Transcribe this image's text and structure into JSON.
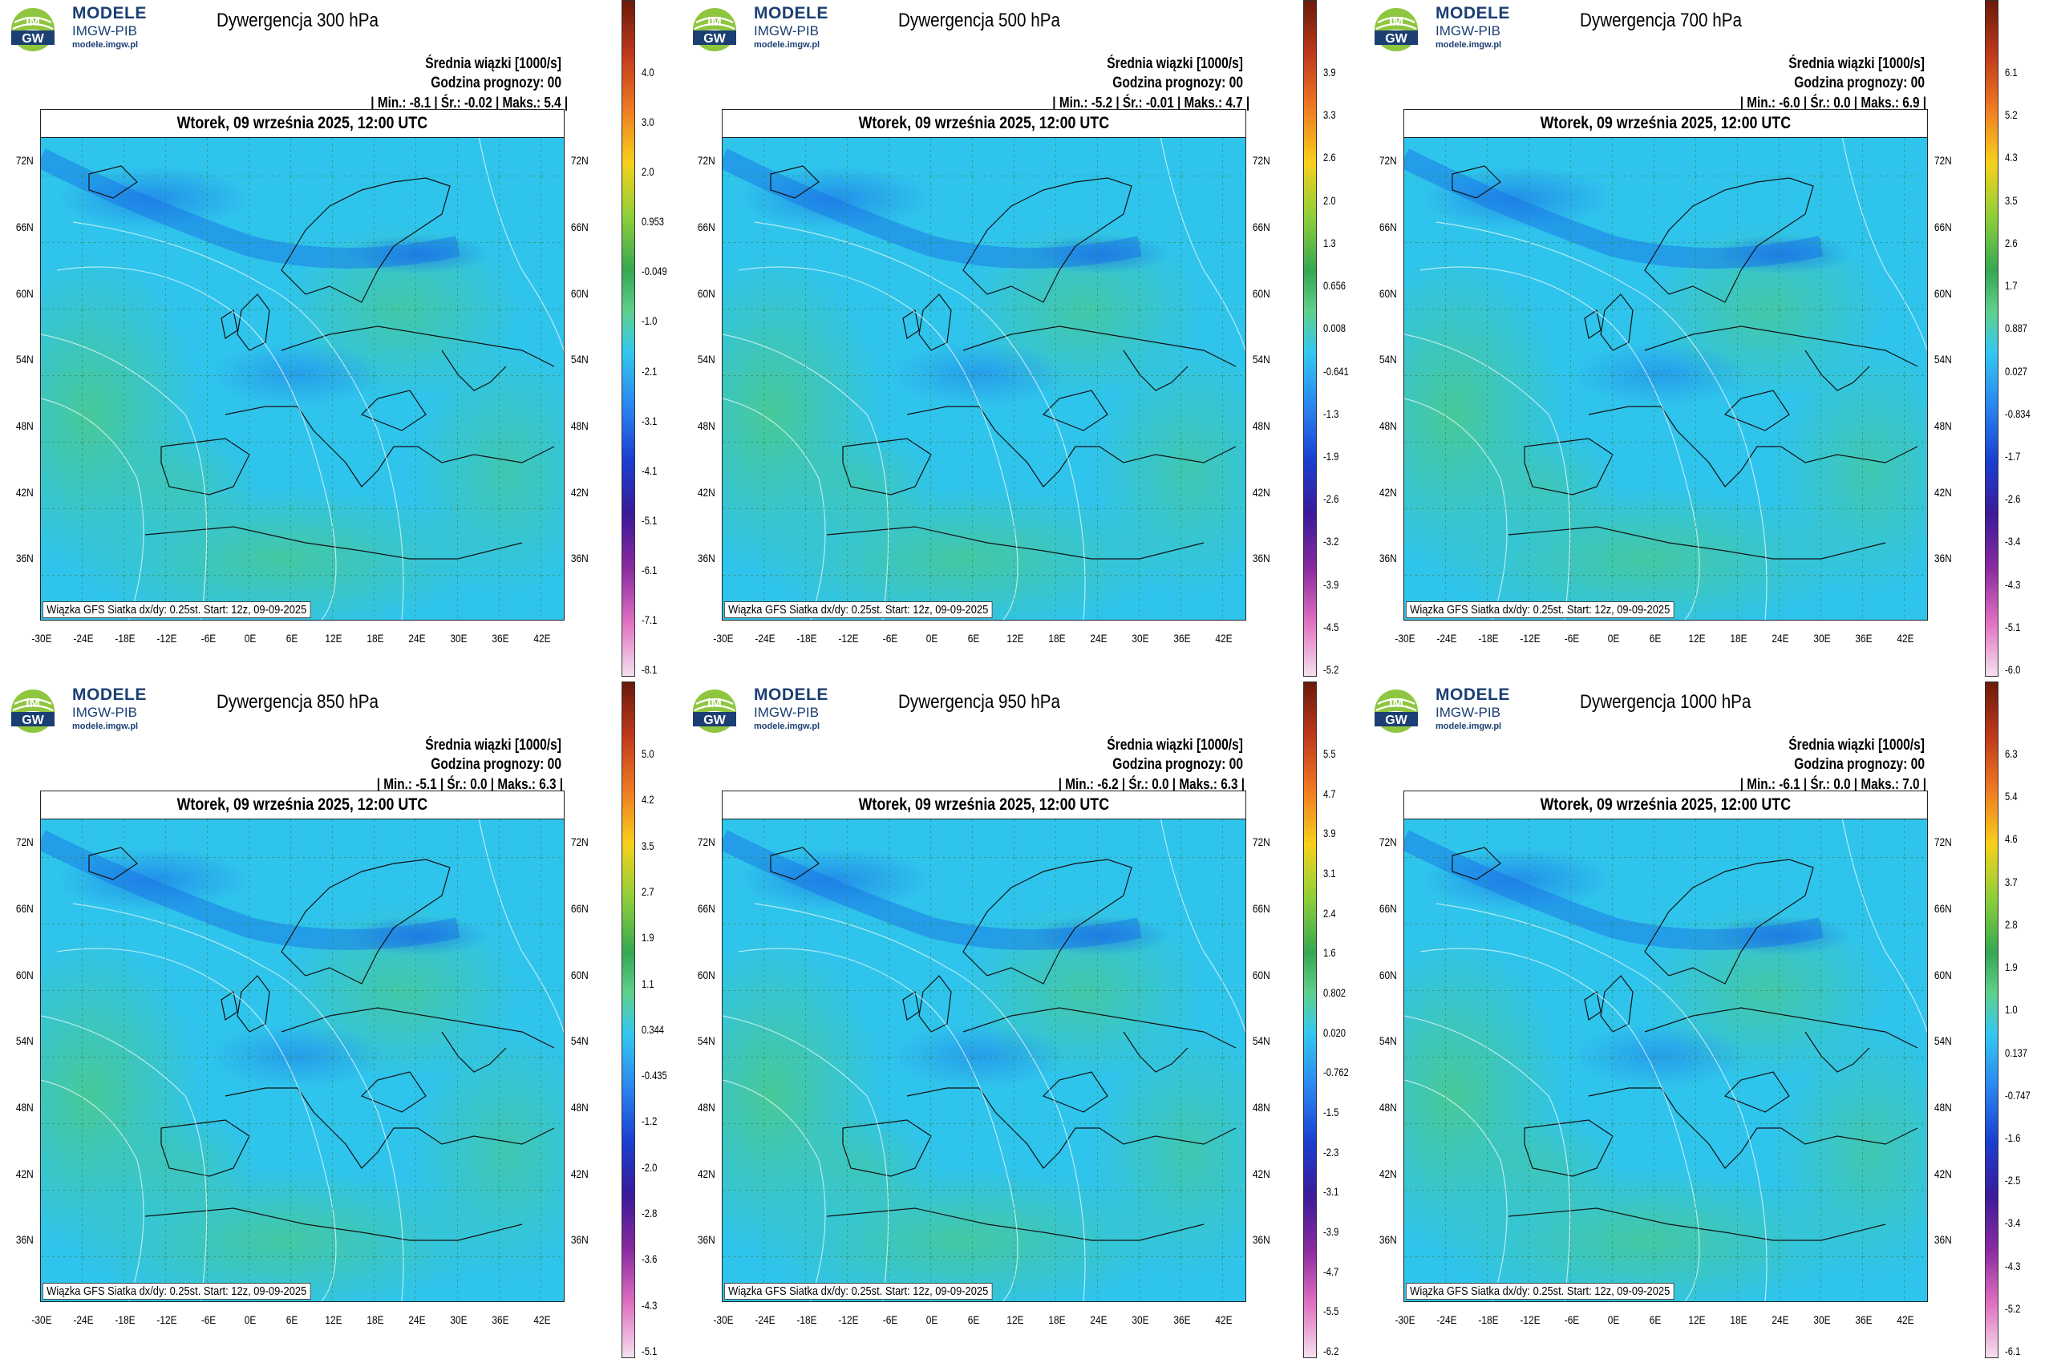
{
  "brand": {
    "line1": "MODELE",
    "line2": "IMGW-PIB",
    "line3": "modele.imgw.pl",
    "logo_text_top": "IM",
    "logo_text_bottom": "GW"
  },
  "common": {
    "ensemble_label": "Średnia wiązki [1000/s]",
    "forecast_hour_label": "Godzina prognozy: 00",
    "date": "Wtorek, 09 września 2025, 12:00 UTC",
    "footer": "Wiązka GFS Siatka dx/dy: 0.25st. Start: 12z, 09-09-2025",
    "lat_labels": [
      "72N",
      "66N",
      "60N",
      "54N",
      "48N",
      "42N",
      "36N"
    ],
    "lon_labels": [
      "-30E",
      "-24E",
      "-18E",
      "-12E",
      "-6E",
      "0E",
      "6E",
      "12E",
      "18E",
      "24E",
      "30E",
      "36E",
      "42E"
    ]
  },
  "panels": [
    {
      "title": "Dywergencja 300 hPa",
      "min": "-8.1",
      "avg": "-0.02",
      "max": "5.4",
      "scale": [
        "4.0",
        "3.0",
        "2.0",
        "0.953",
        "-0.049",
        "-1.0",
        "-2.1",
        "-3.1",
        "-4.1",
        "-5.1",
        "-6.1",
        "-7.1",
        "-8.1"
      ]
    },
    {
      "title": "Dywergencja 500 hPa",
      "min": "-5.2",
      "avg": "-0.01",
      "max": "4.7",
      "scale": [
        "3.9",
        "3.3",
        "2.6",
        "2.0",
        "1.3",
        "0.656",
        "0.008",
        "-0.641",
        "-1.3",
        "-1.9",
        "-2.6",
        "-3.2",
        "-3.9",
        "-4.5",
        "-5.2"
      ]
    },
    {
      "title": "Dywergencja 700 hPa",
      "min": "-6.0",
      "avg": "0.0",
      "max": "6.9",
      "scale": [
        "6.1",
        "5.2",
        "4.3",
        "3.5",
        "2.6",
        "1.7",
        "0.887",
        "0.027",
        "-0.834",
        "-1.7",
        "-2.6",
        "-3.4",
        "-4.3",
        "-5.1",
        "-6.0"
      ]
    },
    {
      "title": "Dywergencja 850 hPa",
      "min": "-5.1",
      "avg": "0.0",
      "max": "6.3",
      "scale": [
        "5.0",
        "4.2",
        "3.5",
        "2.7",
        "1.9",
        "1.1",
        "0.344",
        "-0.435",
        "-1.2",
        "-2.0",
        "-2.8",
        "-3.6",
        "-4.3",
        "-5.1"
      ]
    },
    {
      "title": "Dywergencja 950 hPa",
      "min": "-6.2",
      "avg": "0.0",
      "max": "6.3",
      "scale": [
        "5.5",
        "4.7",
        "3.9",
        "3.1",
        "2.4",
        "1.6",
        "0.802",
        "0.020",
        "-0.762",
        "-1.5",
        "-2.3",
        "-3.1",
        "-3.9",
        "-4.7",
        "-5.5",
        "-6.2"
      ]
    },
    {
      "title": "Dywergencja 1000 hPa",
      "min": "-6.1",
      "avg": "0.0",
      "max": "7.0",
      "scale": [
        "6.3",
        "5.4",
        "4.6",
        "3.7",
        "2.8",
        "1.9",
        "1.0",
        "0.137",
        "-0.747",
        "-1.6",
        "-2.5",
        "-3.4",
        "-4.3",
        "-5.2",
        "-6.1"
      ]
    }
  ]
}
